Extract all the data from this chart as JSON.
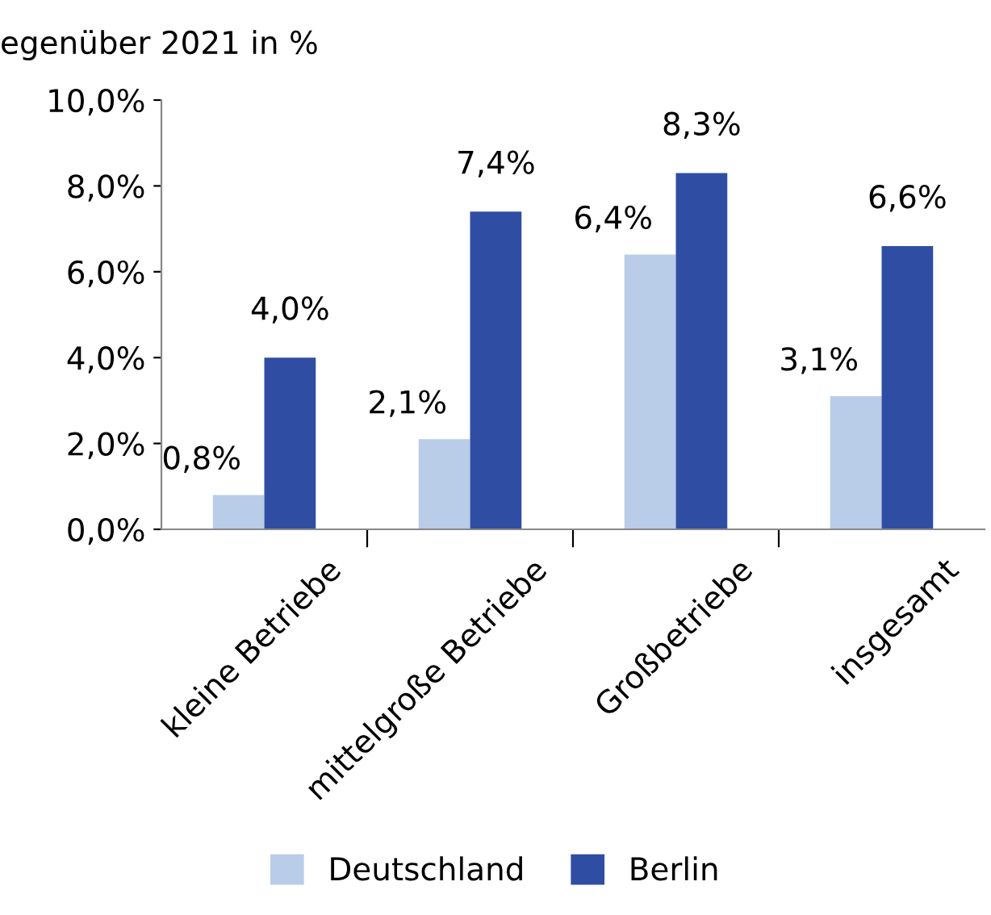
{
  "chart_data": {
    "type": "bar",
    "title": "egenüber 2021 in %",
    "categories": [
      "kleine Betriebe",
      "mittelgroße Betriebe",
      "Großbetriebe",
      "insgesamt"
    ],
    "series": [
      {
        "name": "Deutschland",
        "color": "#b9cce8",
        "values": [
          0.8,
          2.1,
          6.4,
          3.1
        ],
        "value_labels": [
          "0,8%",
          "2,1%",
          "6,4%",
          "3,1%"
        ]
      },
      {
        "name": "Berlin",
        "color": "#2f4ea3",
        "values": [
          4.0,
          7.4,
          8.3,
          6.6
        ],
        "value_labels": [
          "4,0%",
          "7,4%",
          "8,3%",
          "6,6%"
        ]
      }
    ],
    "ylim": [
      0,
      10
    ],
    "yticks": [
      {
        "value": 0,
        "label": "0,0%"
      },
      {
        "value": 2,
        "label": "2,0%"
      },
      {
        "value": 4,
        "label": "4,0%"
      },
      {
        "value": 6,
        "label": "6,0%"
      },
      {
        "value": 8,
        "label": "8,0%"
      },
      {
        "value": 10,
        "label": "10,0%"
      }
    ],
    "grid": false,
    "legend": "bottom"
  }
}
